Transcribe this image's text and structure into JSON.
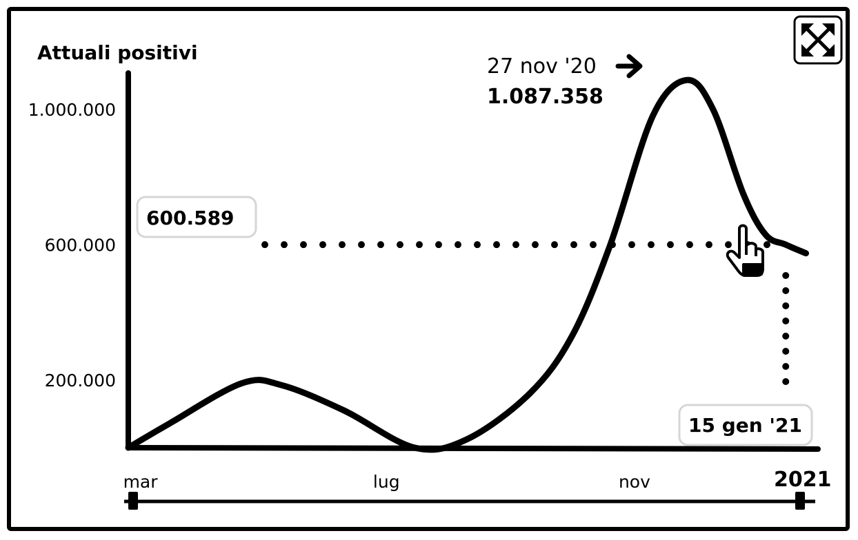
{
  "chart_data": {
    "type": "line",
    "title": "Attuali positivi",
    "y_ticks": [
      "1.000.000",
      "600.000",
      "200.000"
    ],
    "y_tick_values": [
      1000000,
      600000,
      200000
    ],
    "x_ticks": [
      "mar",
      "lug",
      "nov"
    ],
    "x_year_label": "2021",
    "x_range": [
      "2020-02-24",
      "2021-01-31"
    ],
    "ylim": [
      0,
      1100000
    ],
    "series": [
      {
        "x": [
          "2020-02-24",
          "2020-03-15",
          "2020-04-20",
          "2020-05-10",
          "2020-06-10",
          "2020-07-15",
          "2020-08-10",
          "2020-09-10",
          "2020-10-01",
          "2020-10-20",
          "2020-11-10",
          "2020-11-27",
          "2020-12-10",
          "2020-12-25",
          "2021-01-05",
          "2021-01-15",
          "2021-01-25"
        ],
        "values": [
          0,
          70000,
          190000,
          185000,
          110000,
          0,
          25000,
          160000,
          330000,
          600000,
          980000,
          1087358,
          1000000,
          750000,
          630000,
          600589,
          575000
        ]
      }
    ],
    "peak": {
      "date": "27 nov '20",
      "value": "1.087.358"
    },
    "hover": {
      "value": "600.589",
      "date": "15 gen '21"
    },
    "grid": false,
    "legend": "none"
  },
  "icons": {
    "expand": "expand-arrows-icon",
    "cursor": "hand-pointer-icon",
    "arrow": "arrow-right-icon"
  }
}
